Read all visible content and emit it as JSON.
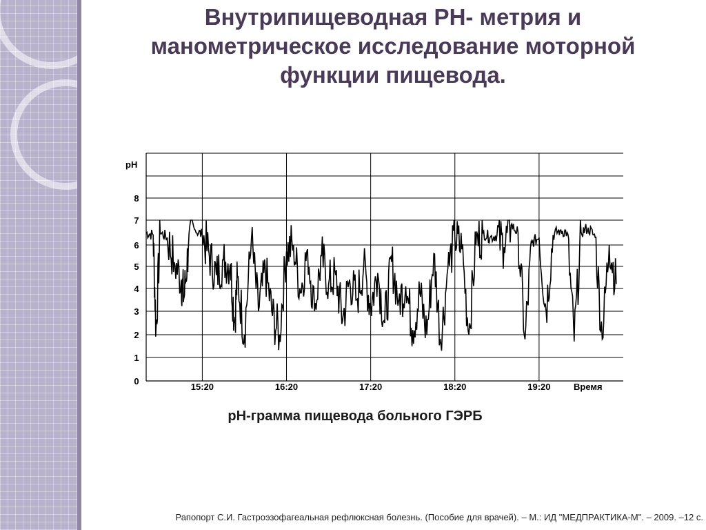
{
  "slide": {
    "title_lines": [
      "Внутрипищеводная PH- метрия и",
      "манометрическое исследование моторной",
      "функции пищевода."
    ],
    "caption": "pH-грамма пищевода больного ГЭРБ",
    "footnote": "Рапопорт С.И. Гастроэзофагеальная рефлюксная болезнь. (Пособие для врачей). – М.: ИД \"МЕДПРАКТИКА-М\". – 2009. –12 с."
  },
  "colors": {
    "title": "#4a3a5a",
    "sidebar": "#b9b2cc",
    "trace": "#000000"
  },
  "chart_data": {
    "type": "line",
    "title": "",
    "ylabel": "pH",
    "xlabel": "Время",
    "ylim": [
      0,
      10
    ],
    "xlim": [
      "14:40",
      "20:20"
    ],
    "yticks": [
      0,
      1,
      2,
      3,
      4,
      5,
      6,
      7,
      8
    ],
    "xticks": [
      "15:20",
      "16:20",
      "17:20",
      "18:20",
      "19:20"
    ],
    "grid": true,
    "series": [
      {
        "x": [
          "14:40",
          "14:45",
          "14:47",
          "14:50",
          "14:55",
          "15:00",
          "15:05",
          "15:07",
          "15:10",
          "15:15",
          "15:20",
          "15:25",
          "15:30",
          "15:35",
          "15:40",
          "15:43",
          "15:45",
          "15:50",
          "15:55",
          "16:00",
          "16:05",
          "16:10",
          "16:15",
          "16:20",
          "16:25",
          "16:30",
          "16:35",
          "16:40",
          "16:45",
          "16:50",
          "16:55",
          "17:00",
          "17:05",
          "17:10",
          "17:15",
          "17:20",
          "17:25",
          "17:30",
          "17:35",
          "17:40",
          "17:45",
          "17:50",
          "17:55",
          "18:00",
          "18:05",
          "18:10",
          "18:15",
          "18:20",
          "18:25",
          "18:30",
          "18:35",
          "18:40",
          "18:45",
          "18:50",
          "18:55",
          "19:00",
          "19:05",
          "19:10",
          "19:15",
          "19:20",
          "19:25",
          "19:30",
          "19:35",
          "19:40",
          "19:45",
          "19:50",
          "19:55",
          "20:00",
          "20:05",
          "20:10",
          "20:15"
        ],
        "y": [
          6.5,
          6.4,
          2.2,
          6.5,
          6.3,
          5.2,
          4.4,
          3.6,
          5.8,
          6.6,
          6.4,
          5.5,
          4.6,
          5.3,
          5.1,
          2.5,
          4.5,
          2.0,
          6.2,
          3.0,
          4.8,
          2.8,
          2.0,
          5.7,
          6.0,
          3.8,
          5.8,
          3.0,
          5.5,
          4.2,
          4.6,
          2.6,
          4.4,
          3.5,
          5.0,
          3.2,
          4.7,
          2.5,
          5.2,
          3.5,
          4.1,
          2.2,
          3.8,
          2.0,
          5.6,
          1.6,
          4.9,
          6.2,
          5.8,
          2.0,
          6.0,
          6.5,
          6.3,
          6.4,
          5.9,
          6.8,
          6.5,
          1.8,
          6.1,
          6.3,
          3.0,
          6.4,
          6.6,
          6.5,
          1.7,
          6.5,
          6.7,
          6.3,
          1.8,
          6.0,
          4.2
        ]
      }
    ]
  }
}
